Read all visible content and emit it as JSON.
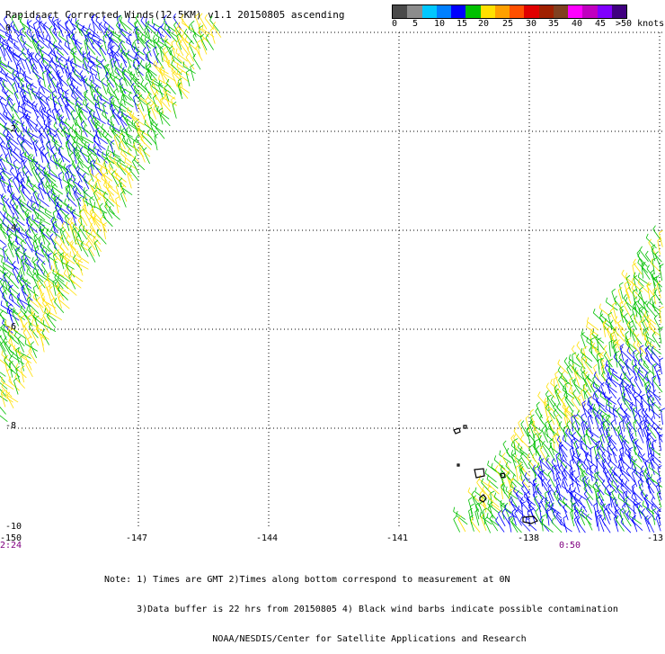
{
  "title": "Rapidsact Corrected Winds(12.5KM) v1.1 20150805 ascending",
  "colorbar": {
    "labels": [
      "0",
      "5",
      "10",
      "15",
      "20",
      "25",
      "30",
      "35",
      "40",
      "45",
      ">50 knots"
    ],
    "colors": [
      "#4a4a4a",
      "#8c8c8c",
      "#00c8ff",
      "#0080ff",
      "#0000ff",
      "#00c000",
      "#ffe000",
      "#ffa000",
      "#ff5000",
      "#e00000",
      "#a02000",
      "#804020",
      "#ff00ff",
      "#c000c0",
      "#8000ff",
      "#400080"
    ]
  },
  "axes": {
    "lat_labels": [
      "0",
      "-2",
      "-4",
      "-6",
      "-8",
      "-10"
    ],
    "lon_labels": [
      "-150",
      "-147",
      "-144",
      "-141",
      "-138",
      "-13"
    ]
  },
  "times": {
    "left": "2:24",
    "right": "0:50"
  },
  "notes": {
    "line1": "Note: 1) Times are GMT 2)Times along bottom correspond to measurement at 0N",
    "line2": "      3)Data buffer is 22 hrs from 20150805 4) Black wind barbs indicate possible contamination",
    "line3": "                    NOAA/NESDIS/Center for Satellite Applications and Research"
  },
  "wind_colors": {
    "low": "#0000ff",
    "mid": "#00c000",
    "high": "#ffe000"
  },
  "map_features": {
    "grid": "dotted",
    "islands": "Marquesas Islands outline"
  }
}
